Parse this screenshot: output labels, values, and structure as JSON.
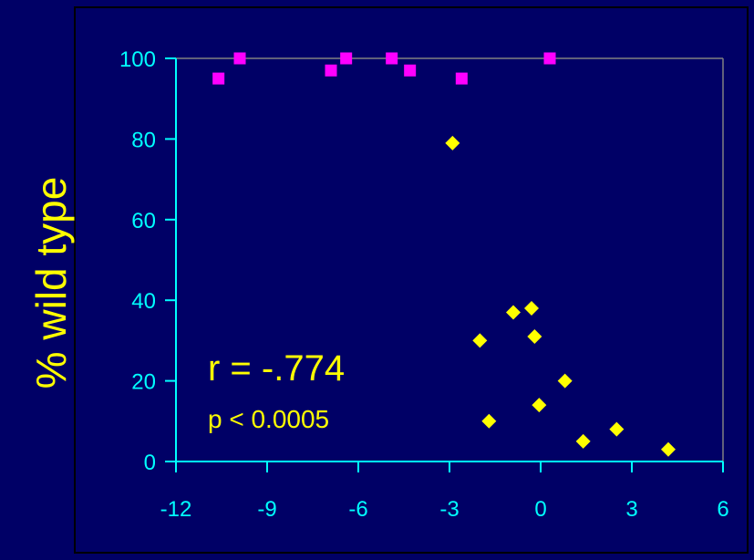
{
  "chart_data": {
    "type": "scatter",
    "title": "",
    "xlabel": "",
    "ylabel": "% wild type",
    "xlim": [
      -12,
      6
    ],
    "ylim": [
      0,
      100
    ],
    "x_ticks": [
      -12,
      -9,
      -6,
      -3,
      0,
      3,
      6
    ],
    "y_ticks": [
      0,
      20,
      40,
      60,
      80,
      100
    ],
    "grid": false,
    "legend": "none",
    "series": [
      {
        "color": "#FF00FF",
        "marker": "square",
        "points": [
          {
            "x": -10.6,
            "y": 95
          },
          {
            "x": -9.9,
            "y": 100
          },
          {
            "x": -6.9,
            "y": 97
          },
          {
            "x": -6.4,
            "y": 100
          },
          {
            "x": -4.9,
            "y": 100
          },
          {
            "x": -4.3,
            "y": 97
          },
          {
            "x": -2.6,
            "y": 95
          },
          {
            "x": 0.3,
            "y": 100
          }
        ]
      },
      {
        "color": "#FFFF00",
        "marker": "diamond",
        "points": [
          {
            "x": -2.9,
            "y": 79
          },
          {
            "x": -2.0,
            "y": 30
          },
          {
            "x": -1.7,
            "y": 10
          },
          {
            "x": -0.9,
            "y": 37
          },
          {
            "x": -0.3,
            "y": 38
          },
          {
            "x": -0.2,
            "y": 31
          },
          {
            "x": -0.05,
            "y": 14
          },
          {
            "x": 0.8,
            "y": 20
          },
          {
            "x": 1.4,
            "y": 5
          },
          {
            "x": 2.5,
            "y": 8
          },
          {
            "x": 4.2,
            "y": 3
          }
        ]
      }
    ],
    "annotations": [
      {
        "text": "r = -.774",
        "color": "#FFFF00"
      },
      {
        "text": "p < 0.0005",
        "color": "#FFFF00"
      }
    ]
  },
  "colors": {
    "background": "#000066",
    "axis": "#00FFFF",
    "frame": "#808080",
    "tick_label": "#00FFFF",
    "ylabel": "#FFFF00"
  }
}
